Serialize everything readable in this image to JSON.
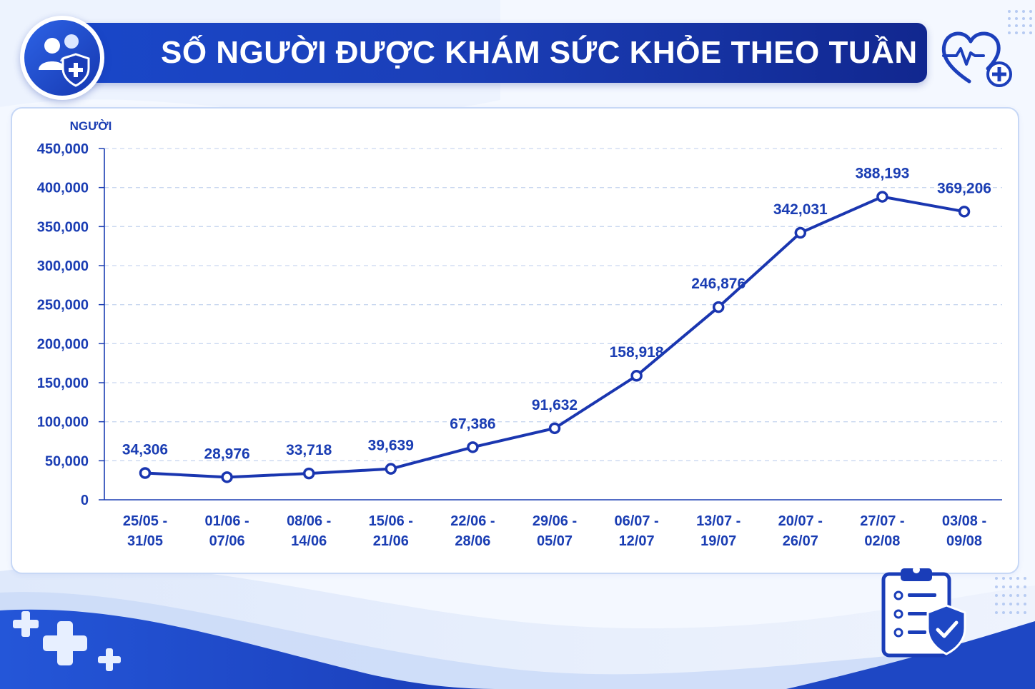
{
  "header": {
    "title": "SỐ NGƯỜI ĐƯỢC KHÁM SỨC KHỎE THEO TUẦN"
  },
  "colors": {
    "primary": "#1a3dbd",
    "line": "#1a36b0",
    "label": "#1a3db3",
    "grid": "#c9d7f0"
  },
  "icons": {
    "badge": "people-shield-icon",
    "heart": "heart-pulse-icon",
    "clipboard": "clipboard-check-icon",
    "plus": "plus-icon"
  },
  "chart_data": {
    "type": "line",
    "title": "SỐ NGƯỜI ĐƯỢC KHÁM SỨC KHỎE THEO TUẦN",
    "ylabel": "NGƯỜI",
    "xlabel": "",
    "ylim": [
      0,
      450000
    ],
    "yticks": [
      0,
      50000,
      100000,
      150000,
      200000,
      250000,
      300000,
      350000,
      400000,
      450000
    ],
    "ytick_labels": [
      "0",
      "50,000",
      "100,000",
      "150,000",
      "200,000",
      "250,000",
      "300,000",
      "350,000",
      "400,000",
      "450,000"
    ],
    "grid": true,
    "categories": [
      [
        "25/05 -",
        "31/05"
      ],
      [
        "01/06 -",
        "07/06"
      ],
      [
        "08/06 -",
        "14/06"
      ],
      [
        "15/06 -",
        "21/06"
      ],
      [
        "22/06 -",
        "28/06"
      ],
      [
        "29/06 -",
        "05/07"
      ],
      [
        "06/07 -",
        "12/07"
      ],
      [
        "13/07 -",
        "19/07"
      ],
      [
        "20/07 -",
        "26/07"
      ],
      [
        "27/07 -",
        "02/08"
      ],
      [
        "03/08 -",
        "09/08"
      ]
    ],
    "values": [
      34306,
      28976,
      33718,
      39639,
      67386,
      91632,
      158918,
      246876,
      342031,
      388193,
      369206
    ],
    "value_labels": [
      "34,306",
      "28,976",
      "33,718",
      "39,639",
      "67,386",
      "91,632",
      "158,918",
      "246,876",
      "342,031",
      "388,193",
      "369,206"
    ]
  }
}
